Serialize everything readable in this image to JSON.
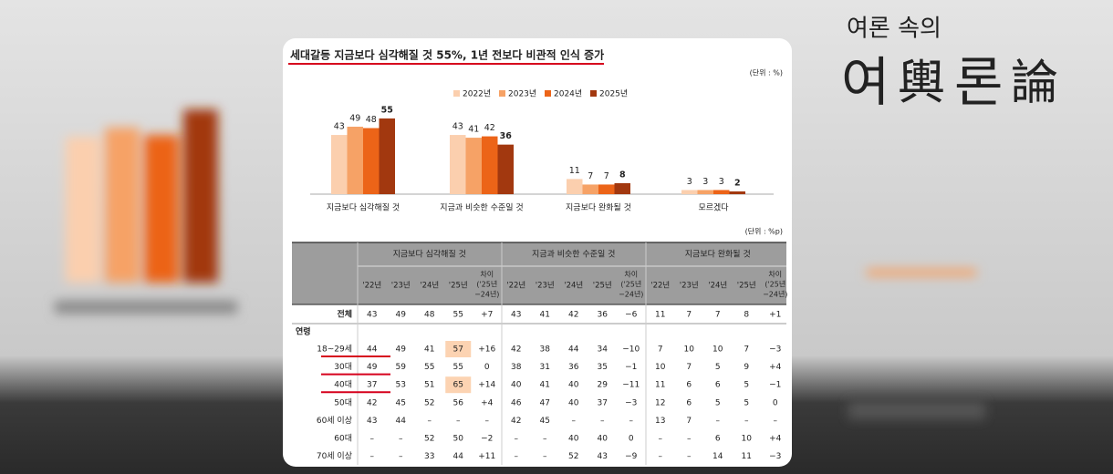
{
  "broadcast": {
    "logo_top": "여론 속의",
    "logo_main": [
      "여",
      "輿",
      "론",
      "論"
    ]
  },
  "chart_data": {
    "type": "bar",
    "title": "세대갈등 지금보다 심각해질 것 55%, 1년 전보다 비관적 인식 증가",
    "unit": "(단위 : %)",
    "categories": [
      "지금보다 심각해질 것",
      "지금과 비슷한 수준일 것",
      "지금보다 완화될 것",
      "모르겠다"
    ],
    "series": [
      {
        "name": "2022년",
        "color": "#fbcfae",
        "values": [
          43,
          43,
          11,
          3
        ]
      },
      {
        "name": "2023년",
        "color": "#f6a266",
        "values": [
          49,
          41,
          7,
          3
        ]
      },
      {
        "name": "2024년",
        "color": "#ec6418",
        "values": [
          48,
          42,
          7,
          3
        ]
      },
      {
        "name": "2025년",
        "color": "#a2380f",
        "values": [
          55,
          36,
          8,
          2
        ]
      }
    ],
    "legend": "top"
  },
  "table": {
    "unit": "(단위 : %p)",
    "groups": [
      "지금보다 심각해질 것",
      "지금과 비슷한 수준일 것",
      "지금보다 완화될 것"
    ],
    "subheaders": [
      "'22년",
      "'23년",
      "'24년",
      "'25년",
      [
        "차이",
        "('25년",
        "−24년)"
      ]
    ],
    "section": "연령",
    "rows": [
      {
        "label": "전체",
        "cells": [
          "43",
          "49",
          "48",
          "55",
          "+7",
          "43",
          "41",
          "42",
          "36",
          "−6",
          "11",
          "7",
          "7",
          "8",
          "+1"
        ]
      },
      {
        "label": "18~29세",
        "cells": [
          "44",
          "49",
          "41",
          "57",
          "+16",
          "42",
          "38",
          "44",
          "34",
          "−10",
          "7",
          "10",
          "10",
          "7",
          "−3"
        ]
      },
      {
        "label": "30대",
        "cells": [
          "49",
          "59",
          "55",
          "55",
          "0",
          "38",
          "31",
          "36",
          "35",
          "−1",
          "10",
          "7",
          "5",
          "9",
          "+4"
        ]
      },
      {
        "label": "40대",
        "cells": [
          "37",
          "53",
          "51",
          "65",
          "+14",
          "40",
          "41",
          "40",
          "29",
          "−11",
          "11",
          "6",
          "6",
          "5",
          "−1"
        ]
      },
      {
        "label": "50대",
        "cells": [
          "42",
          "45",
          "52",
          "56",
          "+4",
          "46",
          "47",
          "40",
          "37",
          "−3",
          "12",
          "6",
          "5",
          "5",
          "0"
        ]
      },
      {
        "label": "60세 이상",
        "cells": [
          "43",
          "44",
          "–",
          "–",
          "–",
          "42",
          "45",
          "–",
          "–",
          "–",
          "13",
          "7",
          "–",
          "–",
          "–"
        ]
      },
      {
        "label": "60대",
        "cells": [
          "–",
          "–",
          "52",
          "50",
          "−2",
          "–",
          "–",
          "40",
          "40",
          "0",
          "–",
          "–",
          "6",
          "10",
          "+4"
        ]
      },
      {
        "label": "70세 이상",
        "cells": [
          "–",
          "–",
          "33",
          "44",
          "+11",
          "–",
          "–",
          "52",
          "43",
          "−9",
          "–",
          "–",
          "14",
          "11",
          "−3"
        ]
      }
    ]
  }
}
